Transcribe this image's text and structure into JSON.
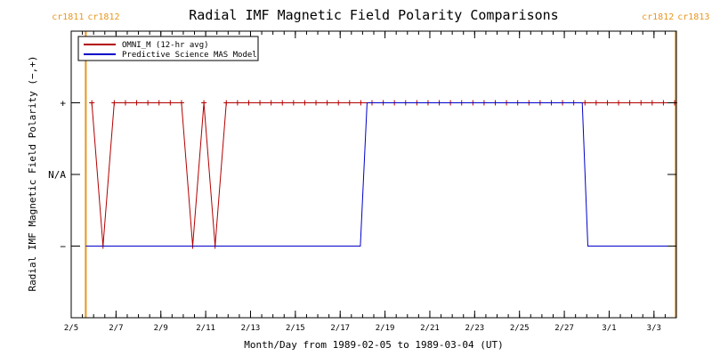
{
  "chart_data": {
    "type": "line",
    "title": "Radial IMF Magnetic Field Polarity Comparisons",
    "xlabel": "Month/Day from 1989-02-05 to 1989-03-04 (UT)",
    "ylabel": "Radial IMF Magnetic Field Polarity (−,+)",
    "x_unit": "days",
    "xlim": [
      0,
      27
    ],
    "ylim": [
      -2,
      2
    ],
    "x_ticks": [
      {
        "x": 0,
        "label": "2/5"
      },
      {
        "x": 2,
        "label": "2/7"
      },
      {
        "x": 4,
        "label": "2/9"
      },
      {
        "x": 6,
        "label": "2/11"
      },
      {
        "x": 8,
        "label": "2/13"
      },
      {
        "x": 10,
        "label": "2/15"
      },
      {
        "x": 12,
        "label": "2/17"
      },
      {
        "x": 14,
        "label": "2/19"
      },
      {
        "x": 16,
        "label": "2/21"
      },
      {
        "x": 18,
        "label": "2/23"
      },
      {
        "x": 20,
        "label": "2/25"
      },
      {
        "x": 22,
        "label": "2/27"
      },
      {
        "x": 24,
        "label": "3/1"
      },
      {
        "x": 26,
        "label": "3/3"
      }
    ],
    "y_ticks": [
      {
        "y": 1,
        "label": "+"
      },
      {
        "y": 0,
        "label": "N/A"
      },
      {
        "y": -1,
        "label": "−"
      }
    ],
    "minor_ticks_per_major": 4,
    "grid": false,
    "legend_position": "top-left",
    "carrington": [
      {
        "x": 0.65,
        "left_label": "cr1811",
        "right_label": "cr1812"
      },
      {
        "x": 26.97,
        "left_label": "cr1812",
        "right_label": "cr1813"
      }
    ],
    "series": [
      {
        "name": "OMNI_M (12-hr avg)",
        "color": "#b20000",
        "marker": "+",
        "x": [
          0.92,
          1.42,
          1.92,
          2.42,
          2.92,
          3.42,
          3.92,
          4.42,
          4.92,
          5.42,
          5.92,
          6.42,
          6.92,
          7.42,
          7.92,
          8.42,
          8.92,
          9.42,
          9.92,
          10.42,
          10.92,
          11.42,
          11.92,
          12.42,
          12.92,
          13.42,
          13.92,
          14.42,
          14.92,
          15.42,
          15.92,
          16.42,
          16.92,
          17.42,
          17.92,
          18.42,
          18.92,
          19.42,
          19.92,
          20.42,
          20.92,
          21.42,
          21.92,
          22.42,
          22.92,
          23.42,
          23.92,
          24.42,
          24.92,
          25.42,
          25.92,
          26.42,
          26.92
        ],
        "y": [
          1,
          -1,
          1,
          1,
          1,
          1,
          1,
          1,
          1,
          -1,
          1,
          -1,
          1,
          1,
          1,
          1,
          1,
          1,
          1,
          1,
          1,
          1,
          1,
          1,
          1,
          1,
          1,
          1,
          1,
          1,
          1,
          1,
          1,
          1,
          1,
          1,
          1,
          1,
          1,
          1,
          1,
          1,
          1,
          1,
          1,
          1,
          1,
          1,
          1,
          1,
          1,
          1,
          1
        ]
      },
      {
        "name": "Predictive Science MAS Model",
        "color": "#0000c8",
        "marker": "",
        "x": [
          0.65,
          12.9,
          13.2,
          22.8,
          23.05,
          26.97
        ],
        "y": [
          -1,
          -1,
          1,
          1,
          -1,
          -1
        ]
      }
    ]
  }
}
